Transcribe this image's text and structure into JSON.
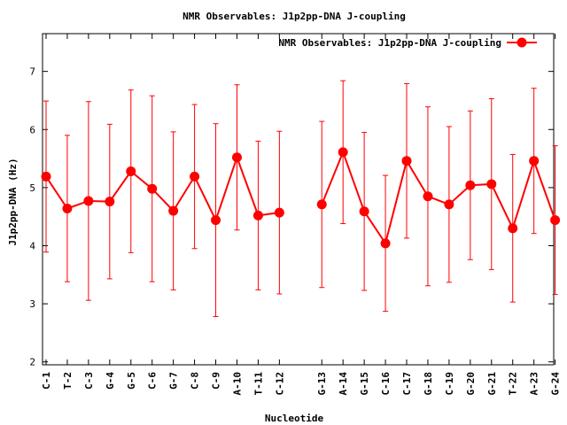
{
  "chart_data": {
    "type": "line",
    "title": "NMR Observables: J1p2pp-DNA J-coupling",
    "xlabel": "Nucleotide",
    "ylabel": "J1p2pp-DNA (Hz)",
    "ylim": [
      1.95,
      7.65
    ],
    "yticks": [
      2,
      3,
      4,
      5,
      6,
      7
    ],
    "grid": false,
    "legend_position": "top-right",
    "series": [
      {
        "name": "NMR Observables: J1p2pp-DNA J-coupling",
        "color": "#ff0000",
        "segments": [
          {
            "categories": [
              "C-1",
              "T-2",
              "C-3",
              "G-4",
              "G-5",
              "C-6",
              "G-7",
              "C-8",
              "C-9",
              "A-10",
              "T-11",
              "C-12"
            ],
            "values": [
              5.19,
              4.64,
              4.77,
              4.76,
              5.28,
              4.98,
              4.6,
              5.19,
              4.44,
              5.52,
              4.52,
              4.57
            ],
            "error": [
              1.3,
              1.26,
              1.71,
              1.33,
              1.4,
              1.6,
              1.36,
              1.24,
              1.66,
              1.25,
              1.28,
              1.4
            ]
          },
          {
            "categories": [
              "G-13",
              "A-14",
              "G-15",
              "C-16",
              "C-17",
              "G-18",
              "C-19",
              "G-20",
              "G-21",
              "T-22",
              "A-23",
              "G-24"
            ],
            "values": [
              4.71,
              5.61,
              4.59,
              4.04,
              5.46,
              4.85,
              4.71,
              5.04,
              5.06,
              4.3,
              5.46,
              4.44
            ],
            "error": [
              1.43,
              1.23,
              1.36,
              1.17,
              1.33,
              1.54,
              1.34,
              1.28,
              1.47,
              1.27,
              1.25,
              1.28
            ]
          }
        ]
      }
    ]
  }
}
